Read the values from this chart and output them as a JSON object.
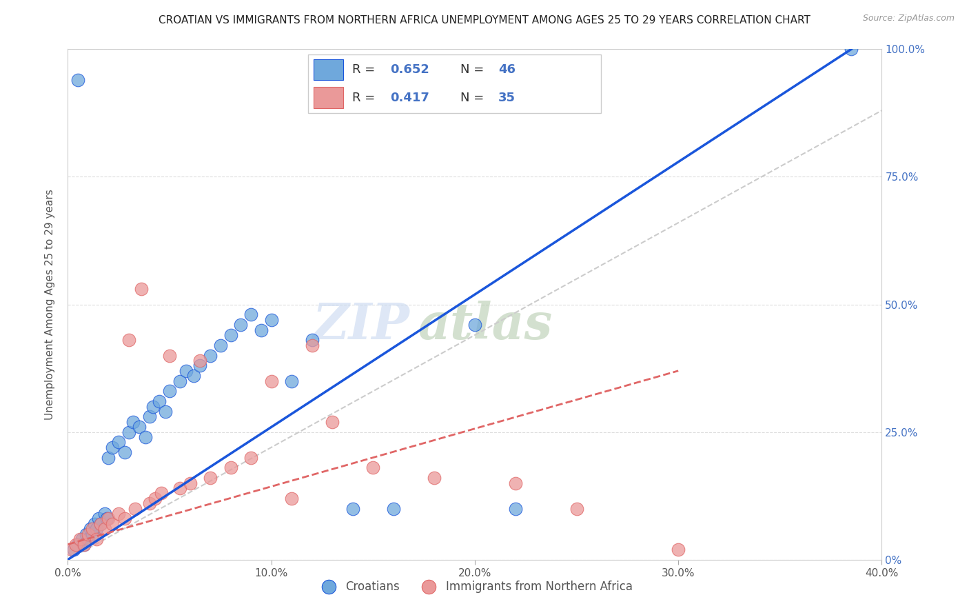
{
  "title": "CROATIAN VS IMMIGRANTS FROM NORTHERN AFRICA UNEMPLOYMENT AMONG AGES 25 TO 29 YEARS CORRELATION CHART",
  "source": "Source: ZipAtlas.com",
  "ylabel": "Unemployment Among Ages 25 to 29 years",
  "xlim": [
    0.0,
    0.4
  ],
  "ylim": [
    0.0,
    1.0
  ],
  "xticks": [
    0.0,
    0.1,
    0.2,
    0.3,
    0.4
  ],
  "yticks": [
    0.0,
    0.25,
    0.5,
    0.75,
    1.0
  ],
  "ytick_labels_right": [
    "0%",
    "25.0%",
    "50.0%",
    "75.0%",
    "100.0%"
  ],
  "xtick_labels": [
    "0.0%",
    "10.0%",
    "20.0%",
    "30.0%",
    "40.0%"
  ],
  "blue_R": 0.652,
  "blue_N": 46,
  "pink_R": 0.417,
  "pink_N": 35,
  "blue_color": "#6fa8dc",
  "pink_color": "#ea9999",
  "blue_line_color": "#1a56db",
  "pink_line_color": "#e06666",
  "ref_line_color": "#cccccc",
  "legend_label_blue": "Croatians",
  "legend_label_pink": "Immigrants from Northern Africa",
  "watermark_zip": "ZIP",
  "watermark_atlas": "atlas",
  "blue_scatter_x": [
    0.003,
    0.005,
    0.007,
    0.008,
    0.009,
    0.01,
    0.011,
    0.012,
    0.013,
    0.014,
    0.015,
    0.016,
    0.018,
    0.019,
    0.02,
    0.022,
    0.025,
    0.028,
    0.03,
    0.032,
    0.035,
    0.038,
    0.04,
    0.042,
    0.045,
    0.048,
    0.05,
    0.055,
    0.058,
    0.062,
    0.065,
    0.07,
    0.075,
    0.08,
    0.085,
    0.09,
    0.095,
    0.1,
    0.11,
    0.12,
    0.14,
    0.16,
    0.2,
    0.22,
    0.385,
    0.005
  ],
  "blue_scatter_y": [
    0.02,
    0.03,
    0.04,
    0.03,
    0.05,
    0.04,
    0.06,
    0.05,
    0.07,
    0.06,
    0.08,
    0.07,
    0.09,
    0.08,
    0.2,
    0.22,
    0.23,
    0.21,
    0.25,
    0.27,
    0.26,
    0.24,
    0.28,
    0.3,
    0.31,
    0.29,
    0.33,
    0.35,
    0.37,
    0.36,
    0.38,
    0.4,
    0.42,
    0.44,
    0.46,
    0.48,
    0.45,
    0.47,
    0.35,
    0.43,
    0.1,
    0.1,
    0.46,
    0.1,
    1.0,
    0.94
  ],
  "pink_scatter_x": [
    0.002,
    0.004,
    0.006,
    0.008,
    0.01,
    0.012,
    0.014,
    0.016,
    0.018,
    0.02,
    0.022,
    0.025,
    0.028,
    0.03,
    0.033,
    0.036,
    0.04,
    0.043,
    0.046,
    0.05,
    0.055,
    0.06,
    0.065,
    0.07,
    0.08,
    0.09,
    0.1,
    0.11,
    0.12,
    0.13,
    0.15,
    0.18,
    0.22,
    0.25,
    0.3
  ],
  "pink_scatter_y": [
    0.02,
    0.03,
    0.04,
    0.03,
    0.05,
    0.06,
    0.04,
    0.07,
    0.06,
    0.08,
    0.07,
    0.09,
    0.08,
    0.43,
    0.1,
    0.53,
    0.11,
    0.12,
    0.13,
    0.4,
    0.14,
    0.15,
    0.39,
    0.16,
    0.18,
    0.2,
    0.35,
    0.12,
    0.42,
    0.27,
    0.18,
    0.16,
    0.15,
    0.1,
    0.02
  ],
  "blue_line_x": [
    0.0,
    0.385
  ],
  "blue_line_y": [
    0.0,
    1.0
  ],
  "pink_line_x": [
    0.0,
    0.3
  ],
  "pink_line_y": [
    0.03,
    0.37
  ],
  "ref_line_x": [
    0.0,
    0.4
  ],
  "ref_line_y": [
    0.0,
    0.88
  ]
}
